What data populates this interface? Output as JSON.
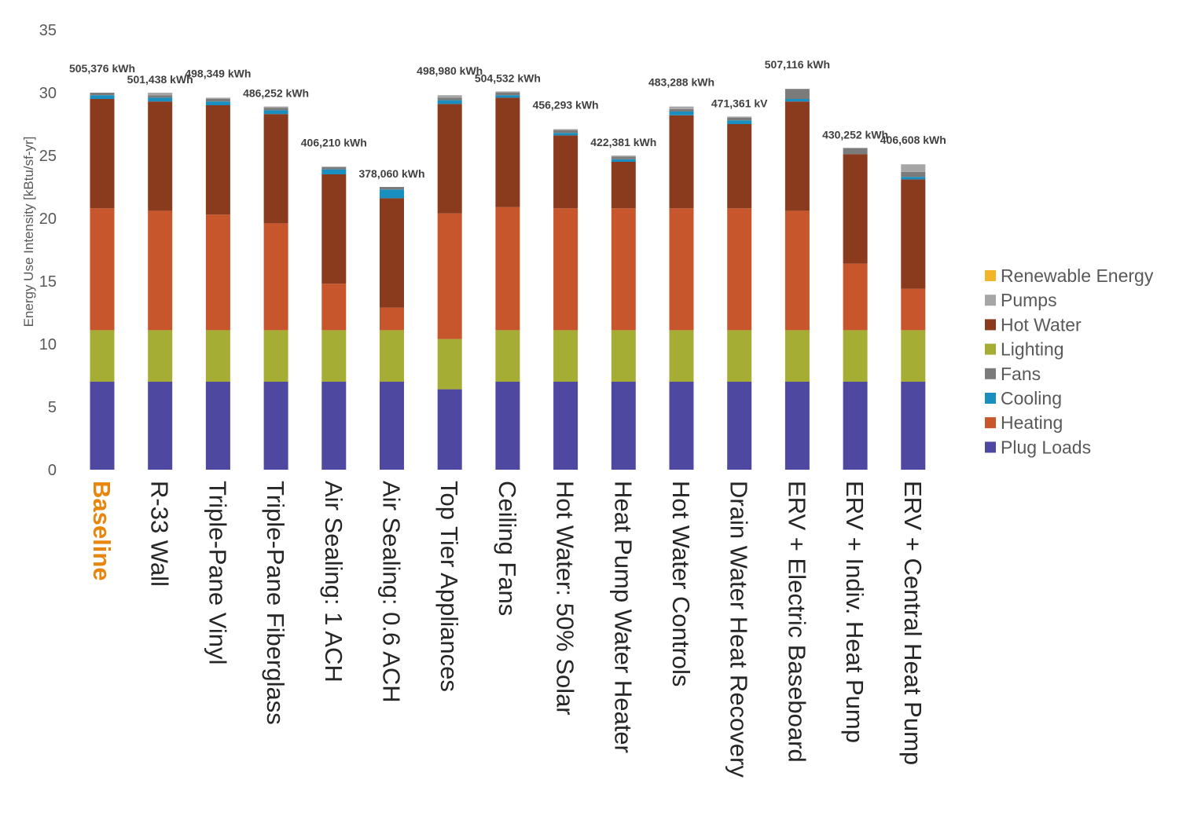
{
  "chart_data": {
    "type": "bar",
    "stacked": true,
    "title": "",
    "xlabel": "",
    "ylabel": "Energy Use Intensity [kBtu/sf-yr]",
    "ylim": [
      0,
      35
    ],
    "yticks": [
      "0",
      "5",
      "10",
      "15",
      "20",
      "25",
      "30",
      "35"
    ],
    "grid": false,
    "legend_position": "right",
    "highlight_category": "Baseline",
    "highlight_color": "#e8860c",
    "categories": [
      "Baseline",
      "R-33 Wall",
      "Triple-Pane Vinyl",
      "Triple-Pane Fiberglass",
      "Air Sealing: 1 ACH",
      "Air Sealing: 0.6 ACH",
      "Top Tier Appliances",
      "Ceiling Fans",
      "Hot Water: 50% Solar",
      "Heat Pump Water Heater",
      "Hot Water Controls",
      "Drain Water Heat Recovery",
      "ERV + Electric Baseboard",
      "ERV + Indiv. Heat Pump",
      "ERV + Central Heat Pump"
    ],
    "totals": [
      "505,376 kWh",
      "501,438 kWh",
      "498,349 kWh",
      "486,252 kWh",
      "406,210 kWh",
      "378,060 kWh",
      "498,980 kWh",
      "504,532 kWh",
      "456,293 kWh",
      "422,381 kWh",
      "483,288 kWh",
      "471,361 kV",
      "507,116 kWh",
      "430,252 kWh",
      "406,608 kWh"
    ],
    "series": [
      {
        "name": "Plug Loads",
        "color": "#4e48a0",
        "values": [
          7.0,
          7.0,
          7.0,
          7.0,
          7.0,
          7.0,
          6.4,
          7.0,
          7.0,
          7.0,
          7.0,
          7.0,
          7.0,
          7.0,
          7.0
        ]
      },
      {
        "name": "Lighting",
        "color": "#a5ad35",
        "values": [
          4.1,
          4.1,
          4.1,
          4.1,
          4.1,
          4.1,
          4.0,
          4.1,
          4.1,
          4.1,
          4.1,
          4.1,
          4.1,
          4.1,
          4.1
        ]
      },
      {
        "name": "Heating",
        "color": "#c8562c",
        "values": [
          9.7,
          9.5,
          9.2,
          8.5,
          3.7,
          1.8,
          10.0,
          9.8,
          9.7,
          9.7,
          9.7,
          9.7,
          9.5,
          5.3,
          3.3
        ]
      },
      {
        "name": "Hot Water",
        "color": "#8a3a1d",
        "values": [
          8.7,
          8.7,
          8.7,
          8.7,
          8.7,
          8.7,
          8.7,
          8.7,
          5.8,
          3.7,
          7.4,
          6.7,
          8.7,
          8.7,
          8.7
        ]
      },
      {
        "name": "Cooling",
        "color": "#1a8fbf",
        "values": [
          0.3,
          0.3,
          0.3,
          0.3,
          0.4,
          0.7,
          0.3,
          0.2,
          0.2,
          0.2,
          0.3,
          0.3,
          0.2,
          0.0,
          0.2
        ]
      },
      {
        "name": "Fans",
        "color": "#7b7b7b",
        "values": [
          0.2,
          0.2,
          0.2,
          0.2,
          0.2,
          0.2,
          0.2,
          0.2,
          0.2,
          0.2,
          0.2,
          0.2,
          0.8,
          0.5,
          0.4
        ]
      },
      {
        "name": "Pumps",
        "color": "#a6a6a6",
        "values": [
          0.0,
          0.2,
          0.1,
          0.1,
          0.0,
          0.0,
          0.2,
          0.1,
          0.1,
          0.1,
          0.2,
          0.1,
          0.0,
          0.0,
          0.6
        ]
      },
      {
        "name": "Renewable Energy",
        "color": "#f2b52a",
        "values": [
          0,
          0,
          0,
          0,
          0,
          0,
          0,
          0,
          0,
          0,
          0,
          0,
          0,
          0,
          0
        ]
      }
    ],
    "legend_order": [
      "Renewable Energy",
      "Pumps",
      "Hot Water",
      "Lighting",
      "Fans",
      "Cooling",
      "Heating",
      "Plug Loads"
    ]
  }
}
